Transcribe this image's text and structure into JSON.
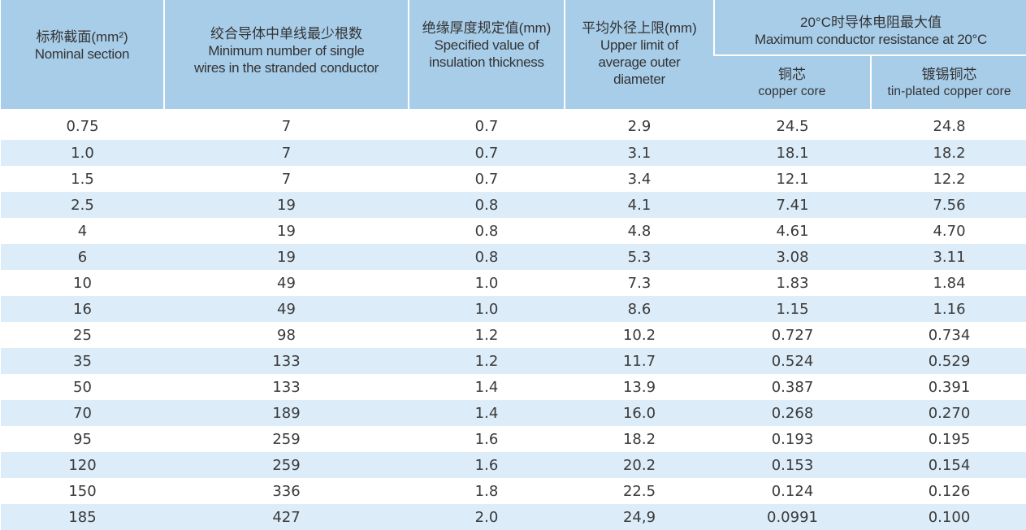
{
  "table": {
    "headers": {
      "nominal": {
        "zh": "标称截面(mm²)",
        "en": "Nominal section"
      },
      "wires": {
        "zh": "绞合导体中单线最少根数",
        "en1": "Minimum number of single",
        "en2": "wires in the stranded conductor"
      },
      "insulation": {
        "zh": "绝缘厚度规定值(mm)",
        "en1": "Specified value of",
        "en2": "insulation thickness"
      },
      "outer": {
        "zh": "平均外径上限(mm)",
        "en1": "Upper limit of",
        "en2": "average outer",
        "en3": "diameter"
      },
      "resistance": {
        "zh": "20°C时导体电阻最大值",
        "en": "Maximum conductor resistance at 20°C"
      },
      "copper": {
        "zh": "铜芯",
        "en": "copper core"
      },
      "tinned": {
        "zh": "镀锡铜芯",
        "en": "tin-plated copper core"
      }
    },
    "rows": [
      [
        "0.75",
        "7",
        "0.7",
        "2.9",
        "24.5",
        "24.8"
      ],
      [
        "1.0",
        "7",
        "0.7",
        "3.1",
        "18.1",
        "18.2"
      ],
      [
        "1.5",
        "7",
        "0.7",
        "3.4",
        "12.1",
        "12.2"
      ],
      [
        "2.5",
        "19",
        "0.8",
        "4.1",
        "7.41",
        "7.56"
      ],
      [
        "4",
        "19",
        "0.8",
        "4.8",
        "4.61",
        "4.70"
      ],
      [
        "6",
        "19",
        "0.8",
        "5.3",
        "3.08",
        "3.11"
      ],
      [
        "10",
        "49",
        "1.0",
        "7.3",
        "1.83",
        "1.84"
      ],
      [
        "16",
        "49",
        "1.0",
        "8.6",
        "1.15",
        "1.16"
      ],
      [
        "25",
        "98",
        "1.2",
        "10.2",
        "0.727",
        "0.734"
      ],
      [
        "35",
        "133",
        "1.2",
        "11.7",
        "0.524",
        "0.529"
      ],
      [
        "50",
        "133",
        "1.4",
        "13.9",
        "0.387",
        "0.391"
      ],
      [
        "70",
        "189",
        "1.4",
        "16.0",
        "0.268",
        "0.270"
      ],
      [
        "95",
        "259",
        "1.6",
        "18.2",
        "0.193",
        "0.195"
      ],
      [
        "120",
        "259",
        "1.6",
        "20.2",
        "0.153",
        "0.154"
      ],
      [
        "150",
        "336",
        "1.8",
        "22.5",
        "0.124",
        "0.126"
      ],
      [
        "185",
        "427",
        "2.0",
        "24,9",
        "0.0991",
        "0.100"
      ]
    ]
  },
  "colors": {
    "header_bg": "#a8cde9",
    "stripe_bg": "#dcecf8",
    "row_bg": "#ffffff",
    "text": "#333333"
  }
}
